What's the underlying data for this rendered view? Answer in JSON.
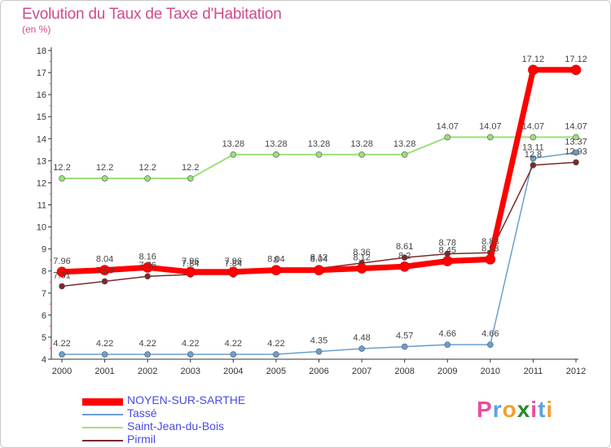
{
  "chart_data": {
    "type": "line",
    "title": "Evolution du Taux de Taxe d'Habitation",
    "subtitle": "(en %)",
    "categories": [
      "2000",
      "2001",
      "2002",
      "2003",
      "2004",
      "2005",
      "2006",
      "2007",
      "2008",
      "2009",
      "2010",
      "2011",
      "2012"
    ],
    "ylim": [
      4,
      18
    ],
    "yticks": [
      "4",
      "5",
      "6",
      "7",
      "8",
      "9",
      "10",
      "11",
      "12",
      "13",
      "14",
      "15",
      "16",
      "17",
      "18"
    ],
    "grid": false,
    "legend_position": "bottom-left",
    "series": [
      {
        "name": "NOYEN-SUR-SARTHE",
        "color": "#ff0000",
        "values": [
          7.96,
          8.04,
          8.16,
          7.96,
          7.96,
          8.04,
          8.04,
          8.12,
          8.2,
          8.45,
          8.53,
          17.12,
          17.12
        ],
        "labels": [
          "7.96",
          "8.04",
          "8.16",
          "7.96",
          "7.96",
          "8.04",
          "8.04",
          "8.12",
          "8.2",
          "8.45",
          "8.53",
          "17.12",
          "17.12"
        ]
      },
      {
        "name": "Tassé",
        "color": "#6a9fd0",
        "values": [
          4.22,
          4.22,
          4.22,
          4.22,
          4.22,
          4.22,
          4.35,
          4.48,
          4.57,
          4.66,
          4.66,
          13.11,
          13.37
        ],
        "labels": [
          "4.22",
          "4.22",
          "4.22",
          "4.22",
          "4.22",
          "4.22",
          "4.35",
          "4.48",
          "4.57",
          "4.66",
          "4.66",
          "13.11",
          "13.37"
        ]
      },
      {
        "name": "Saint-Jean-du-Bois",
        "color": "#9be07a",
        "values": [
          12.2,
          12.2,
          12.2,
          12.2,
          13.28,
          13.28,
          13.28,
          13.28,
          13.28,
          14.07,
          14.07,
          14.07,
          14.07
        ],
        "labels": [
          "12.2",
          "12.2",
          "12.2",
          "12.2",
          "13.28",
          "13.28",
          "13.28",
          "13.28",
          "13.28",
          "14.07",
          "14.07",
          "14.07",
          "14.07"
        ]
      },
      {
        "name": "Pirmil",
        "color": "#7a2a2a",
        "values": [
          7.31,
          7.53,
          7.76,
          7.84,
          7.84,
          8.0,
          8.12,
          8.36,
          8.61,
          8.78,
          8.83,
          12.8,
          12.93
        ],
        "labels": [
          "7.31",
          "7.53",
          "7.76",
          "7.84",
          "7.84",
          "8",
          "8.12",
          "8.36",
          "8.61",
          "8.78",
          "8.83",
          "12.8",
          "12.93"
        ]
      }
    ]
  },
  "brand": {
    "letters": [
      "P",
      "r",
      "o",
      "x",
      "i",
      "t",
      "i"
    ],
    "colors": [
      "#e94e9b",
      "#5aa2e0",
      "#f0a030",
      "#2a8a2a",
      "#e94e9b",
      "#5aa2e0",
      "#f0a030"
    ]
  }
}
